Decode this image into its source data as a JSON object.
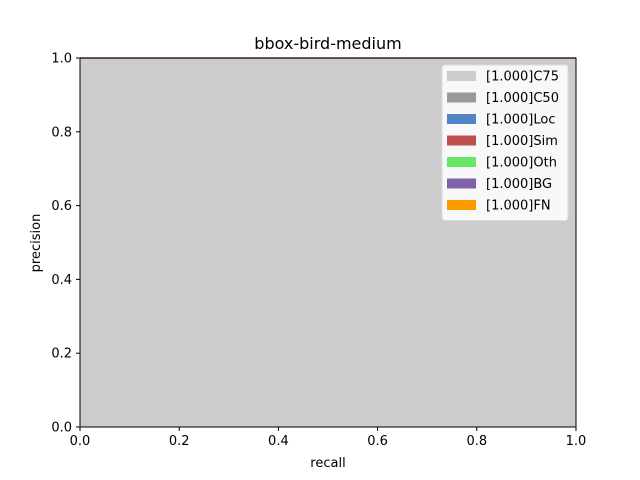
{
  "chart_data": {
    "type": "area",
    "title": "bbox-bird-medium",
    "xlabel": "recall",
    "ylabel": "precision",
    "xlim": [
      0,
      1
    ],
    "ylim": [
      0,
      1
    ],
    "xticks": [
      "0.0",
      "0.2",
      "0.4",
      "0.6",
      "0.8",
      "1.0"
    ],
    "yticks": [
      "0.0",
      "0.2",
      "0.4",
      "0.6",
      "0.8",
      "1.0"
    ],
    "grid": false,
    "legend_position": "top-right",
    "series": [
      {
        "name": "[1.000]C75",
        "color": "#cccccc",
        "x": [
          0,
          1
        ],
        "y": [
          1,
          1
        ]
      },
      {
        "name": "[1.000]C50",
        "color": "#999999",
        "x": [
          0,
          1
        ],
        "y": [
          1,
          1
        ]
      },
      {
        "name": "[1.000]Loc",
        "color": "#5283c4",
        "x": [
          0,
          1
        ],
        "y": [
          1,
          1
        ]
      },
      {
        "name": "[1.000]Sim",
        "color": "#c0504d",
        "x": [
          0,
          1
        ],
        "y": [
          1,
          1
        ]
      },
      {
        "name": "[1.000]Oth",
        "color": "#66e866",
        "x": [
          0,
          1
        ],
        "y": [
          1,
          1
        ]
      },
      {
        "name": "[1.000]BG",
        "color": "#7f63a8",
        "x": [
          0,
          1
        ],
        "y": [
          1,
          1
        ]
      },
      {
        "name": "[1.000]FN",
        "color": "#ff9900",
        "x": [
          0,
          1
        ],
        "y": [
          1,
          1
        ]
      }
    ]
  }
}
